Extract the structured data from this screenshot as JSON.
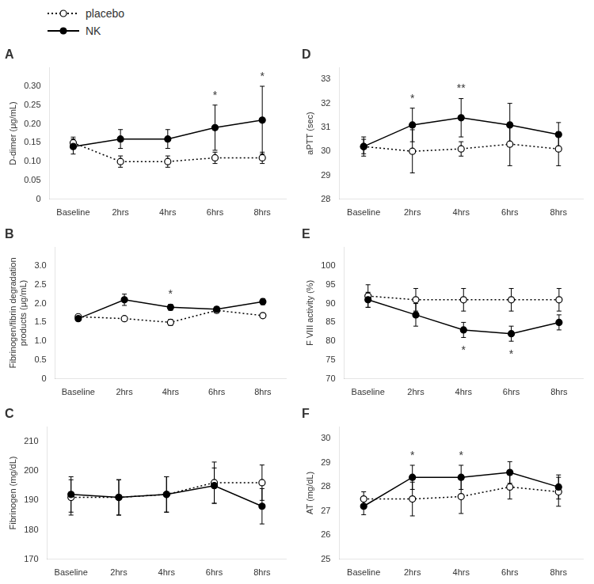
{
  "chart_data": [
    {
      "type": "line",
      "title": "A",
      "y_label": "D-dimer (μg/mL)",
      "legend": "upper left",
      "grid": false,
      "categories": [
        "Baseline",
        "2hrs",
        "4hrs",
        "6hrs",
        "8hrs"
      ],
      "ylim": [
        0,
        0.35
      ],
      "yticks": [
        0,
        0.05,
        {
          "value": 0.1,
          "label": "0.10"
        },
        0.15,
        {
          "value": 0.2,
          "label": "0.20"
        },
        0.25,
        {
          "value": 0.3,
          "label": "0.30"
        }
      ],
      "series": [
        {
          "name": "placebo",
          "color": "#000000",
          "marker": "open_circle",
          "line_style": "dotted",
          "values": [
            0.15,
            0.1,
            0.1,
            0.11,
            0.11
          ],
          "errors": [
            0.015,
            0.015,
            0.015,
            0.015,
            0.015
          ]
        },
        {
          "name": "NK",
          "color": "#000000",
          "marker": "circle",
          "line_style": "solid",
          "values": [
            0.14,
            0.16,
            0.16,
            0.19,
            0.21
          ],
          "errors": [
            0.02,
            0.025,
            0.025,
            0.06,
            0.09
          ]
        }
      ],
      "annotations": [
        {
          "category": "6hrs",
          "text": "*",
          "position": "above"
        },
        {
          "category": "8hrs",
          "text": "*",
          "position": "above"
        }
      ]
    },
    {
      "type": "line",
      "title": "B",
      "y_label": "Fibrinogen/fibrin degradation\nproducts (μg/mL)",
      "grid": false,
      "categories": [
        "Baseline",
        "2hrs",
        "4hrs",
        "6hrs",
        "8hrs"
      ],
      "ylim": [
        0,
        3.5
      ],
      "yticks": [
        0,
        0.5,
        {
          "value": 1.0,
          "label": "1.0"
        },
        1.5,
        {
          "value": 2.0,
          "label": "2.0"
        },
        2.5,
        {
          "value": 3.0,
          "label": "3.0"
        }
      ],
      "series": [
        {
          "name": "placebo",
          "color": "#000000",
          "marker": "open_circle",
          "line_style": "dotted",
          "values": [
            1.65,
            1.6,
            1.5,
            1.82,
            1.68
          ],
          "errors": [
            0.05,
            0.05,
            0.08,
            0.06,
            0.05
          ]
        },
        {
          "name": "NK",
          "color": "#000000",
          "marker": "circle",
          "line_style": "solid",
          "values": [
            1.6,
            2.1,
            1.9,
            1.85,
            2.05
          ],
          "errors": [
            0.05,
            0.15,
            0.08,
            0.06,
            0.08
          ]
        }
      ],
      "annotations": [
        {
          "category": "4hrs",
          "text": "*",
          "position": "above"
        }
      ]
    },
    {
      "type": "line",
      "title": "C",
      "y_label": "Fibrinogen (mg/dL)",
      "grid": false,
      "categories": [
        "Baseline",
        "2hrs",
        "4hrs",
        "6hrs",
        "8hrs"
      ],
      "ylim": [
        170,
        215
      ],
      "yticks": [
        170,
        180,
        190,
        200,
        210
      ],
      "series": [
        {
          "name": "placebo",
          "color": "#000000",
          "marker": "open_circle",
          "line_style": "dotted",
          "values": [
            191,
            191,
            192,
            196,
            196
          ],
          "errors": [
            6,
            6,
            6,
            7,
            6
          ]
        },
        {
          "name": "NK",
          "color": "#000000",
          "marker": "circle",
          "line_style": "solid",
          "values": [
            192,
            191,
            192,
            195,
            188
          ],
          "errors": [
            6,
            6,
            6,
            6,
            6
          ]
        }
      ]
    },
    {
      "type": "line",
      "title": "D",
      "y_label": "aPTT (sec)",
      "grid": false,
      "categories": [
        "Baseline",
        "2hrs",
        "4hrs",
        "6hrs",
        "8hrs"
      ],
      "ylim": [
        28,
        33.5
      ],
      "yticks": [
        28,
        29,
        30,
        31,
        32,
        33
      ],
      "series": [
        {
          "name": "placebo",
          "color": "#000000",
          "marker": "open_circle",
          "line_style": "dotted",
          "values": [
            30.2,
            30.0,
            30.1,
            30.3,
            30.1
          ],
          "errors": [
            0.3,
            0.9,
            0.3,
            0.9,
            0.7
          ]
        },
        {
          "name": "NK",
          "color": "#000000",
          "marker": "circle",
          "line_style": "solid",
          "values": [
            30.2,
            31.1,
            31.4,
            31.1,
            30.7
          ],
          "errors": [
            0.4,
            0.7,
            0.8,
            0.9,
            0.5
          ]
        }
      ],
      "annotations": [
        {
          "category": "2hrs",
          "text": "*",
          "position": "above"
        },
        {
          "category": "4hrs",
          "text": "**",
          "position": "above"
        }
      ]
    },
    {
      "type": "line",
      "title": "E",
      "y_label": "F VIII activity (%)",
      "grid": false,
      "categories": [
        "Baseline",
        "2hrs",
        "4hrs",
        "6hrs",
        "8hrs"
      ],
      "ylim": [
        70,
        105
      ],
      "yticks": [
        70,
        75,
        80,
        85,
        90,
        95,
        100
      ],
      "series": [
        {
          "name": "placebo",
          "color": "#000000",
          "marker": "open_circle",
          "line_style": "dotted",
          "values": [
            92,
            91,
            91,
            91,
            91
          ],
          "errors": [
            3,
            3,
            3,
            3,
            3
          ]
        },
        {
          "name": "NK",
          "color": "#000000",
          "marker": "circle",
          "line_style": "solid",
          "values": [
            91,
            87,
            83,
            82,
            85
          ],
          "errors": [
            2,
            3,
            2,
            2,
            2
          ]
        }
      ],
      "annotations": [
        {
          "category": "4hrs",
          "text": "*",
          "position": "below"
        },
        {
          "category": "6hrs",
          "text": "*",
          "position": "below"
        }
      ]
    },
    {
      "type": "line",
      "title": "F",
      "y_label": "AT (mg/dL)",
      "grid": false,
      "categories": [
        "Baseline",
        "2hrs",
        "4hrs",
        "6hrs",
        "8hrs"
      ],
      "ylim": [
        25,
        30.5
      ],
      "yticks": [
        25,
        26,
        27,
        28,
        29,
        30
      ],
      "series": [
        {
          "name": "placebo",
          "color": "#000000",
          "marker": "open_circle",
          "line_style": "dotted",
          "values": [
            27.5,
            27.5,
            27.6,
            28.0,
            27.8
          ],
          "errors": [
            0.3,
            0.7,
            0.7,
            0.5,
            0.6
          ]
        },
        {
          "name": "NK",
          "color": "#000000",
          "marker": "circle",
          "line_style": "solid",
          "values": [
            27.2,
            28.4,
            28.4,
            28.6,
            28.0
          ],
          "errors": [
            0.35,
            0.5,
            0.5,
            0.45,
            0.5
          ]
        }
      ],
      "annotations": [
        {
          "category": "2hrs",
          "text": "*",
          "position": "above"
        },
        {
          "category": "4hrs",
          "text": "*",
          "position": "above"
        }
      ]
    }
  ]
}
